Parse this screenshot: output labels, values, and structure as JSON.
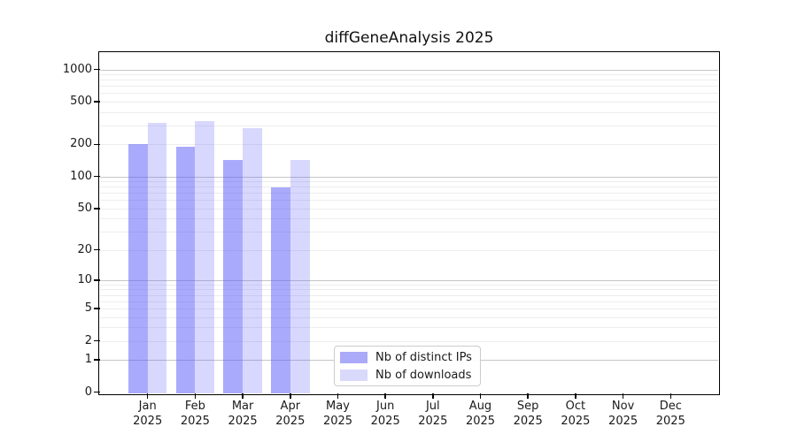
{
  "title": "diffGeneAnalysis 2025",
  "chart_data": {
    "type": "bar",
    "title": "diffGeneAnalysis 2025",
    "categories": [
      "Jan",
      "Feb",
      "Mar",
      "Apr",
      "May",
      "Jun",
      "Jul",
      "Aug",
      "Sep",
      "Oct",
      "Nov",
      "Dec"
    ],
    "year_label": "2025",
    "series": [
      {
        "name": "Nb of distinct IPs",
        "legend_color": "#aaaaf9",
        "bar_color": "rgba(85,85,250,0.50)",
        "values": [
          201,
          190,
          143,
          79,
          null,
          null,
          null,
          null,
          null,
          null,
          null,
          null
        ]
      },
      {
        "name": "Nb of downloads",
        "legend_color": "#d9d9fb",
        "bar_color": "rgba(85,85,250,0.23)",
        "values": [
          318,
          330,
          284,
          143,
          null,
          null,
          null,
          null,
          null,
          null,
          null,
          null
        ]
      }
    ],
    "y_scale": "log10(1+x)",
    "ylim": [
      0,
      1420
    ],
    "y_ticks": [
      0,
      1,
      2,
      5,
      10,
      20,
      50,
      100,
      200,
      500,
      1000
    ],
    "y_major_grid": [
      1,
      10,
      100,
      1000
    ],
    "y_minor_grid": [
      2,
      3,
      4,
      5,
      6,
      7,
      8,
      9,
      20,
      30,
      40,
      50,
      60,
      70,
      80,
      90,
      200,
      300,
      400,
      500,
      600,
      700,
      800,
      900
    ],
    "grid": true,
    "legend_position": "lower-center",
    "colors": {
      "major_grid": "#c6c6c6",
      "minor_grid": "#ededed",
      "axis": "#000000",
      "text": "#1a1a1a"
    }
  }
}
